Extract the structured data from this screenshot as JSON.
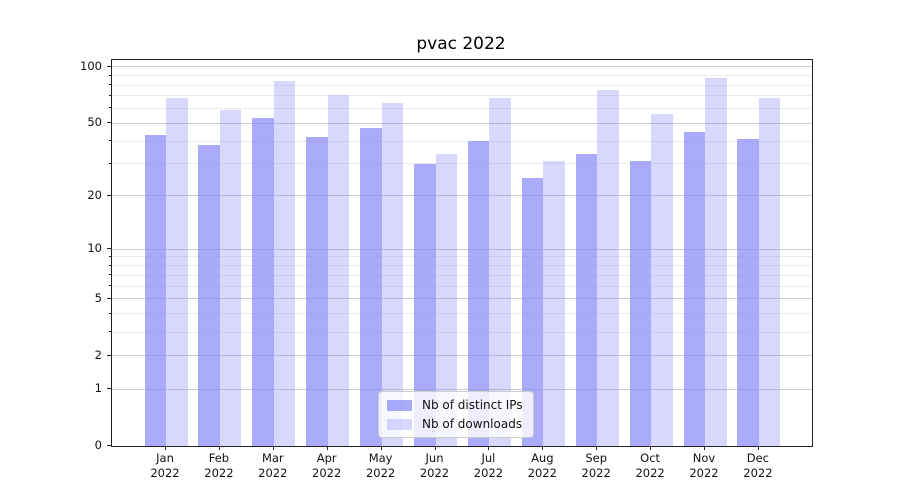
{
  "chart_data": {
    "type": "bar",
    "title": "pvac 2022",
    "categories": [
      "Jan",
      "Feb",
      "Mar",
      "Apr",
      "May",
      "Jun",
      "Jul",
      "Aug",
      "Sep",
      "Oct",
      "Nov",
      "Dec"
    ],
    "category_year": "2022",
    "series": [
      {
        "name": "Nb of distinct IPs",
        "color": "#aaaaf9",
        "fill_rgba": "rgba(142,142,248,0.75)",
        "values": [
          43,
          38,
          53,
          42,
          47,
          30,
          40,
          25,
          34,
          31,
          45,
          41
        ]
      },
      {
        "name": "Nb of downloads",
        "color": "#dadaf9",
        "fill_rgba": "rgba(142,142,248,0.35)",
        "values": [
          68,
          59,
          84,
          71,
          64,
          34,
          68,
          31,
          75,
          56,
          87,
          68
        ]
      }
    ],
    "xlabel": "",
    "ylabel": "",
    "yscale": "log(1+x)",
    "ylim": [
      0,
      110
    ],
    "y_major_ticks": [
      0,
      1,
      2,
      5,
      10,
      20,
      50,
      100
    ],
    "y_minor_ticks": [
      3,
      4,
      6,
      7,
      8,
      9,
      30,
      40,
      60,
      70,
      80,
      90
    ],
    "grid": true,
    "grid_major_color": "#cccccc",
    "grid_minor_color": "#ebebeb",
    "legend_position": "lower center"
  }
}
